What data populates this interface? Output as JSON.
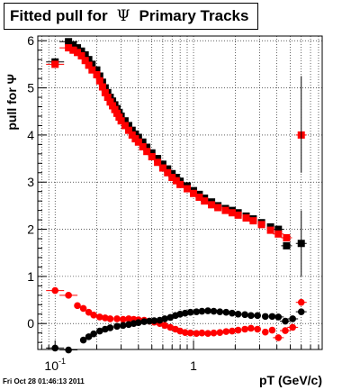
{
  "title": {
    "prefix": "Fitted pull for",
    "symbol": "Ψ",
    "suffix": "Primary Tracks"
  },
  "footer": "Fri Oct 28 01:46:13 2011",
  "colors": {
    "series_black": "#000000",
    "series_red": "#ff0000",
    "grid": "#000000"
  },
  "chart_data": {
    "type": "scatter",
    "xlabel": "pT (GeV/c)",
    "ylabel": "pull for Ψ",
    "xscale": "log",
    "xlim": [
      0.075,
      8.5
    ],
    "ylim": [
      -0.55,
      6.1
    ],
    "x_tick_labels": [
      {
        "value": 0.1,
        "base": "10",
        "exp": "-1"
      },
      {
        "value": 1,
        "text": "1"
      }
    ],
    "y_ticks": [
      0,
      1,
      2,
      3,
      4,
      5,
      6
    ],
    "grid": true,
    "series": [
      {
        "marker": "square",
        "color": "#000000",
        "description": "upper band",
        "points": [
          [
            0.1,
            5.55
          ],
          [
            0.125,
            5.98
          ],
          [
            0.135,
            5.9
          ],
          [
            0.145,
            5.85
          ],
          [
            0.155,
            5.78
          ],
          [
            0.165,
            5.7
          ],
          [
            0.175,
            5.6
          ],
          [
            0.185,
            5.5
          ],
          [
            0.2,
            5.38
          ],
          [
            0.21,
            5.25
          ],
          [
            0.22,
            5.12
          ],
          [
            0.23,
            5.0
          ],
          [
            0.24,
            4.9
          ],
          [
            0.25,
            4.8
          ],
          [
            0.26,
            4.72
          ],
          [
            0.27,
            4.64
          ],
          [
            0.28,
            4.56
          ],
          [
            0.29,
            4.48
          ],
          [
            0.3,
            4.4
          ],
          [
            0.32,
            4.3
          ],
          [
            0.34,
            4.2
          ],
          [
            0.36,
            4.1
          ],
          [
            0.38,
            4.02
          ],
          [
            0.4,
            3.95
          ],
          [
            0.43,
            3.85
          ],
          [
            0.46,
            3.74
          ],
          [
            0.5,
            3.62
          ],
          [
            0.55,
            3.5
          ],
          [
            0.6,
            3.38
          ],
          [
            0.65,
            3.28
          ],
          [
            0.7,
            3.18
          ],
          [
            0.75,
            3.1
          ],
          [
            0.8,
            3.02
          ],
          [
            0.9,
            2.92
          ],
          [
            1.0,
            2.82
          ],
          [
            1.1,
            2.74
          ],
          [
            1.2,
            2.66
          ],
          [
            1.35,
            2.58
          ],
          [
            1.5,
            2.5
          ],
          [
            1.7,
            2.44
          ],
          [
            1.9,
            2.4
          ],
          [
            2.1,
            2.35
          ],
          [
            2.4,
            2.28
          ],
          [
            2.7,
            2.22
          ],
          [
            3.1,
            2.14
          ],
          [
            3.6,
            2.05
          ],
          [
            4.1,
            2.0
          ],
          [
            4.7,
            1.65
          ],
          [
            6.0,
            1.7
          ]
        ]
      },
      {
        "marker": "square",
        "color": "#ff0000",
        "description": "upper band",
        "points": [
          [
            0.1,
            5.5
          ],
          [
            0.125,
            5.85
          ],
          [
            0.135,
            5.8
          ],
          [
            0.145,
            5.75
          ],
          [
            0.155,
            5.68
          ],
          [
            0.165,
            5.58
          ],
          [
            0.175,
            5.48
          ],
          [
            0.185,
            5.38
          ],
          [
            0.2,
            5.28
          ],
          [
            0.21,
            5.15
          ],
          [
            0.22,
            5.02
          ],
          [
            0.23,
            4.9
          ],
          [
            0.24,
            4.8
          ],
          [
            0.25,
            4.7
          ],
          [
            0.26,
            4.62
          ],
          [
            0.27,
            4.54
          ],
          [
            0.28,
            4.46
          ],
          [
            0.29,
            4.38
          ],
          [
            0.3,
            4.3
          ],
          [
            0.32,
            4.2
          ],
          [
            0.34,
            4.1
          ],
          [
            0.36,
            4.0
          ],
          [
            0.38,
            3.92
          ],
          [
            0.4,
            3.85
          ],
          [
            0.43,
            3.75
          ],
          [
            0.46,
            3.65
          ],
          [
            0.5,
            3.54
          ],
          [
            0.55,
            3.42
          ],
          [
            0.6,
            3.3
          ],
          [
            0.65,
            3.2
          ],
          [
            0.7,
            3.1
          ],
          [
            0.75,
            3.03
          ],
          [
            0.8,
            2.95
          ],
          [
            0.9,
            2.86
          ],
          [
            1.0,
            2.76
          ],
          [
            1.1,
            2.68
          ],
          [
            1.2,
            2.6
          ],
          [
            1.35,
            2.52
          ],
          [
            1.5,
            2.46
          ],
          [
            1.7,
            2.4
          ],
          [
            1.9,
            2.35
          ],
          [
            2.1,
            2.3
          ],
          [
            2.4,
            2.24
          ],
          [
            2.7,
            2.18
          ],
          [
            3.1,
            2.1
          ],
          [
            3.6,
            1.98
          ],
          [
            4.1,
            1.9
          ],
          [
            4.7,
            1.82
          ],
          [
            6.0,
            4.0
          ]
        ]
      },
      {
        "marker": "circle",
        "color": "#ff0000",
        "description": "lower band",
        "points": [
          [
            0.1,
            0.7
          ],
          [
            0.125,
            0.6
          ],
          [
            0.145,
            0.38
          ],
          [
            0.16,
            0.32
          ],
          [
            0.175,
            0.24
          ],
          [
            0.19,
            0.18
          ],
          [
            0.21,
            0.14
          ],
          [
            0.23,
            0.12
          ],
          [
            0.25,
            0.1
          ],
          [
            0.28,
            0.1
          ],
          [
            0.31,
            0.09
          ],
          [
            0.34,
            0.1
          ],
          [
            0.37,
            0.09
          ],
          [
            0.4,
            0.08
          ],
          [
            0.44,
            0.07
          ],
          [
            0.48,
            0.05
          ],
          [
            0.52,
            0.03
          ],
          [
            0.57,
            0.0
          ],
          [
            0.62,
            -0.04
          ],
          [
            0.68,
            -0.08
          ],
          [
            0.74,
            -0.12
          ],
          [
            0.8,
            -0.16
          ],
          [
            0.87,
            -0.19
          ],
          [
            0.95,
            -0.2
          ],
          [
            1.05,
            -0.21
          ],
          [
            1.15,
            -0.2
          ],
          [
            1.27,
            -0.21
          ],
          [
            1.4,
            -0.2
          ],
          [
            1.55,
            -0.19
          ],
          [
            1.72,
            -0.17
          ],
          [
            1.9,
            -0.16
          ],
          [
            2.1,
            -0.14
          ],
          [
            2.35,
            -0.12
          ],
          [
            2.6,
            -0.1
          ],
          [
            2.9,
            -0.12
          ],
          [
            3.3,
            -0.18
          ],
          [
            3.7,
            -0.14
          ],
          [
            4.1,
            -0.3
          ],
          [
            4.6,
            -0.15
          ],
          [
            5.2,
            -0.08
          ],
          [
            6.0,
            0.45
          ]
        ]
      },
      {
        "marker": "circle",
        "color": "#000000",
        "description": "lower band",
        "points": [
          [
            0.1,
            -0.52
          ],
          [
            0.125,
            -0.56
          ],
          [
            0.16,
            -0.35
          ],
          [
            0.175,
            -0.28
          ],
          [
            0.19,
            -0.22
          ],
          [
            0.21,
            -0.16
          ],
          [
            0.23,
            -0.12
          ],
          [
            0.25,
            -0.09
          ],
          [
            0.28,
            -0.06
          ],
          [
            0.31,
            -0.04
          ],
          [
            0.34,
            -0.02
          ],
          [
            0.37,
            0.0
          ],
          [
            0.4,
            0.02
          ],
          [
            0.44,
            0.04
          ],
          [
            0.48,
            0.05
          ],
          [
            0.52,
            0.06
          ],
          [
            0.57,
            0.07
          ],
          [
            0.62,
            0.1
          ],
          [
            0.68,
            0.13
          ],
          [
            0.74,
            0.17
          ],
          [
            0.8,
            0.2
          ],
          [
            0.87,
            0.22
          ],
          [
            0.95,
            0.24
          ],
          [
            1.05,
            0.25
          ],
          [
            1.15,
            0.26
          ],
          [
            1.27,
            0.27
          ],
          [
            1.4,
            0.26
          ],
          [
            1.55,
            0.25
          ],
          [
            1.72,
            0.24
          ],
          [
            1.9,
            0.22
          ],
          [
            2.1,
            0.2
          ],
          [
            2.35,
            0.19
          ],
          [
            2.6,
            0.17
          ],
          [
            2.9,
            0.17
          ],
          [
            3.3,
            0.15
          ],
          [
            3.7,
            0.15
          ],
          [
            4.1,
            0.14
          ],
          [
            4.6,
            0.05
          ],
          [
            5.2,
            0.1
          ],
          [
            6.0,
            0.25
          ]
        ]
      }
    ]
  }
}
